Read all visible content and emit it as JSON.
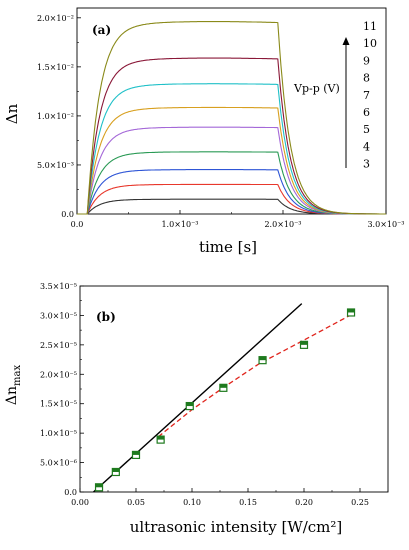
{
  "chart_data": [
    {
      "type": "line",
      "panel_label": "(a)",
      "xlabel": "time [s]",
      "ylabel": "Δn",
      "xlim": [
        0,
        0.003
      ],
      "ylim": [
        0,
        0.021
      ],
      "x_ticks": [
        {
          "value": 0,
          "label": "0.0"
        },
        {
          "value": 0.001,
          "label": "1.0×10⁻³"
        },
        {
          "value": 0.002,
          "label": "2.0×10⁻³"
        },
        {
          "value": 0.003,
          "label": "3.0×10⁻³"
        }
      ],
      "y_ticks": [
        {
          "value": 0,
          "label": "0.0"
        },
        {
          "value": 0.005,
          "label": "5.0×10⁻³"
        },
        {
          "value": 0.01,
          "label": "1.0×10⁻²"
        },
        {
          "value": 0.015,
          "label": "1.5×10⁻²"
        },
        {
          "value": 0.02,
          "label": "2.0×10⁻²"
        }
      ],
      "annotation": "Vp-p (V)",
      "voltage_labels": [
        "11",
        "10",
        "9",
        "8",
        "7",
        "6",
        "5",
        "4",
        "3"
      ],
      "pulse": {
        "rise_start": 0.0001,
        "rise_tau": 0.00012,
        "fall_start": 0.00195,
        "fall_tau": 0.00012
      },
      "series": [
        {
          "values_plateau": 0.0015,
          "color": "#333333"
        },
        {
          "values_plateau": 0.003,
          "color": "#e8382c"
        },
        {
          "values_plateau": 0.0045,
          "color": "#2e55d6"
        },
        {
          "values_plateau": 0.0063,
          "color": "#2a9a55"
        },
        {
          "values_plateau": 0.0088,
          "color": "#a468d8"
        },
        {
          "values_plateau": 0.0108,
          "color": "#d8a020"
        },
        {
          "values_plateau": 0.0132,
          "color": "#20c0c8"
        },
        {
          "values_plateau": 0.0158,
          "color": "#8a1838"
        },
        {
          "values_plateau": 0.0195,
          "color": "#8a8a1a"
        }
      ]
    },
    {
      "type": "scatter",
      "panel_label": "(b)",
      "xlabel": "ultrasonic intensity [W/cm²]",
      "ylabel": "Δn",
      "ylabel_sub": "max",
      "xlim": [
        0,
        0.275
      ],
      "ylim": [
        0,
        3.5e-05
      ],
      "x_ticks": [
        {
          "value": 0.0,
          "label": "0.00"
        },
        {
          "value": 0.05,
          "label": "0.05"
        },
        {
          "value": 0.1,
          "label": "0.10"
        },
        {
          "value": 0.15,
          "label": "0.15"
        },
        {
          "value": 0.2,
          "label": "0.20"
        },
        {
          "value": 0.25,
          "label": "0.25"
        }
      ],
      "y_ticks": [
        {
          "value": 0,
          "label": "0.0"
        },
        {
          "value": 5e-06,
          "label": "5.0×10⁻⁶"
        },
        {
          "value": 1e-05,
          "label": "1.0×10⁻⁵"
        },
        {
          "value": 1.5e-05,
          "label": "1.5×10⁻⁵"
        },
        {
          "value": 2e-05,
          "label": "2.0×10⁻⁵"
        },
        {
          "value": 2.5e-05,
          "label": "2.5×10⁻⁵"
        },
        {
          "value": 3e-05,
          "label": "3.0×10⁻⁵"
        },
        {
          "value": 3.5e-05,
          "label": "3.5×10⁻⁵"
        }
      ],
      "points": [
        {
          "x": 0.017,
          "y": 8e-07
        },
        {
          "x": 0.032,
          "y": 3.4e-06
        },
        {
          "x": 0.05,
          "y": 6.3e-06
        },
        {
          "x": 0.072,
          "y": 8.9e-06
        },
        {
          "x": 0.098,
          "y": 1.46e-05
        },
        {
          "x": 0.128,
          "y": 1.77e-05
        },
        {
          "x": 0.163,
          "y": 2.24e-05
        },
        {
          "x": 0.2,
          "y": 2.5e-05
        },
        {
          "x": 0.242,
          "y": 3.05e-05
        }
      ],
      "marker_color": "#1e7a1e",
      "linear_fit": {
        "x": [
          0.012,
          0.198
        ],
        "y": [
          0,
          3.2e-05
        ],
        "color": "#000000"
      },
      "curve_fit": {
        "x": [
          0.07,
          0.1,
          0.13,
          0.16,
          0.2,
          0.242
        ],
        "y": [
          9.4e-06,
          1.4e-05,
          1.8e-05,
          2.18e-05,
          2.58e-05,
          3.01e-05
        ],
        "color": "#e0241c"
      }
    }
  ]
}
